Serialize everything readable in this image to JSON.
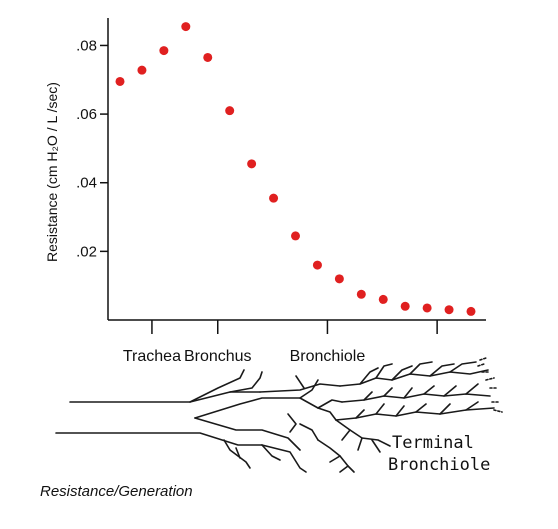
{
  "chart_data": {
    "type": "scatter",
    "ylabel": "Resistance (cm H₂O / L /sec)",
    "yticks": [
      ".02",
      ".04",
      ".06",
      ".08"
    ],
    "ytick_values": [
      0.02,
      0.04,
      0.06,
      0.08
    ],
    "ylim": [
      0,
      0.088
    ],
    "xlim": [
      0,
      17
    ],
    "x_categories": [
      "Trachea",
      "Bronchus",
      "Bronchiole"
    ],
    "x_category_positions": [
      1,
      4,
      9
    ],
    "x_tick_positions": [
      1,
      4,
      9,
      14
    ],
    "marker_color": "#e02020",
    "grid": false,
    "legend": "none",
    "points": [
      {
        "x": 0,
        "y": 0.0695
      },
      {
        "x": 1,
        "y": 0.0728
      },
      {
        "x": 2,
        "y": 0.0785
      },
      {
        "x": 3,
        "y": 0.0855
      },
      {
        "x": 4,
        "y": 0.0765
      },
      {
        "x": 5,
        "y": 0.061
      },
      {
        "x": 6,
        "y": 0.0455
      },
      {
        "x": 7,
        "y": 0.0355
      },
      {
        "x": 8,
        "y": 0.0245
      },
      {
        "x": 9,
        "y": 0.016
      },
      {
        "x": 10,
        "y": 0.012
      },
      {
        "x": 11,
        "y": 0.0075
      },
      {
        "x": 12,
        "y": 0.006
      },
      {
        "x": 13,
        "y": 0.004
      },
      {
        "x": 14,
        "y": 0.0035
      },
      {
        "x": 15,
        "y": 0.003
      },
      {
        "x": 16,
        "y": 0.0025
      }
    ]
  },
  "diagram": {
    "terminal_label_line1": "Terminal",
    "terminal_label_line2": "Bronchiole",
    "airway_tree_icon": "branching-airway-illustration"
  },
  "caption": "Resistance/Generation"
}
